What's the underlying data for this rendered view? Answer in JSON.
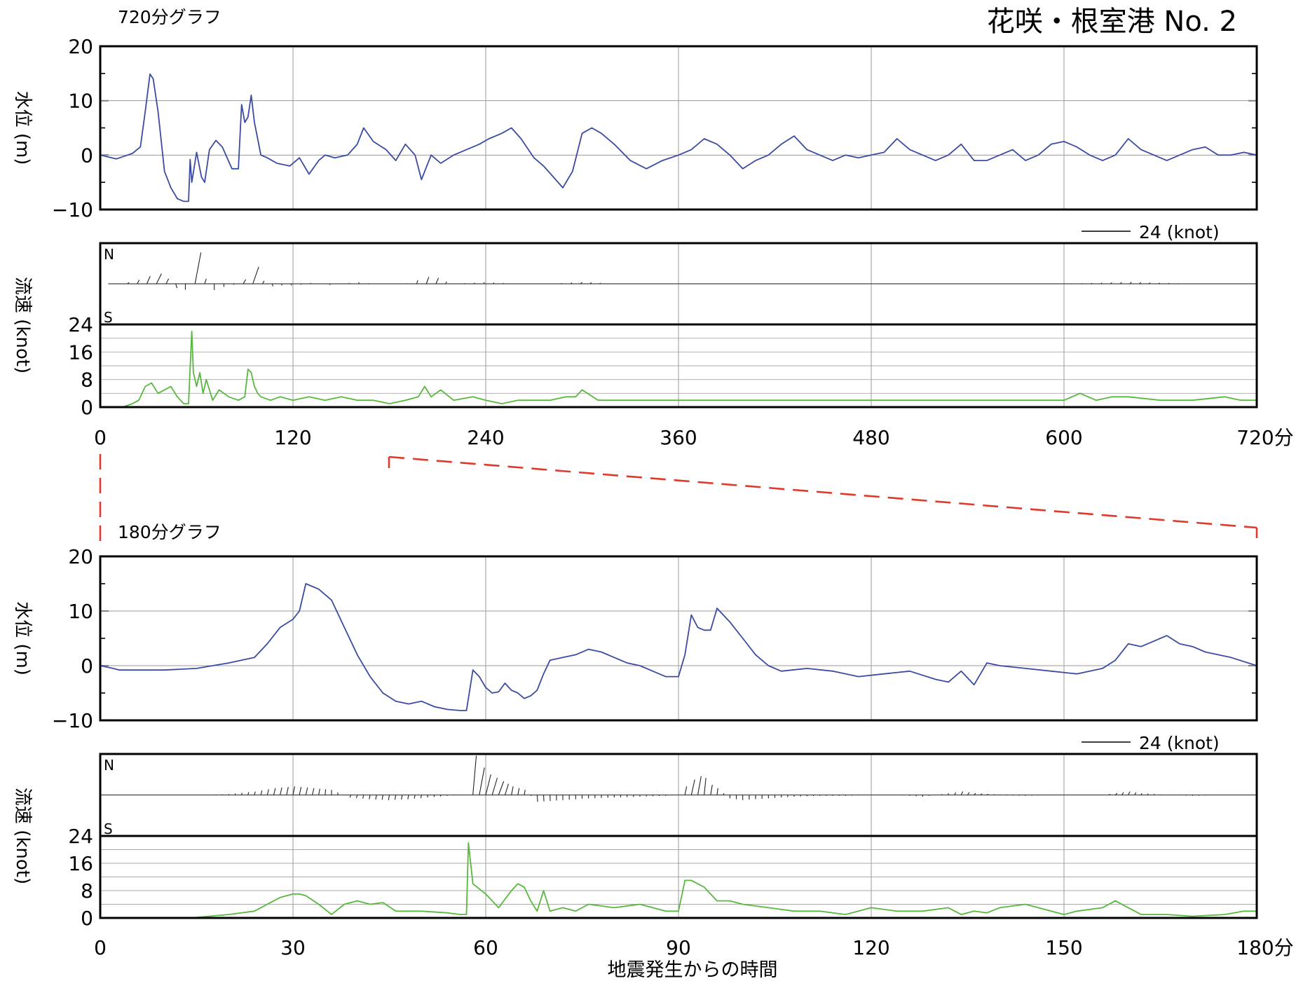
{
  "header": {
    "station": "花咲・根室港 No. 2"
  },
  "common": {
    "xlabel": "地震発生からの時間",
    "x_unit": "分",
    "wl_ylabel": "水位 (m)",
    "sp_ylabel": "流速 (knot)",
    "north_label": "N",
    "south_label": "S",
    "scale_label": "24 (knot)"
  },
  "chart_data": [
    {
      "type": "line",
      "subtitle": "720分グラフ",
      "xlim": [
        0,
        720
      ],
      "x_ticks": [
        0,
        120,
        240,
        360,
        480,
        600,
        720
      ],
      "x_tick_labels": [
        "0",
        "120",
        "240",
        "360",
        "480",
        "600",
        "720分"
      ],
      "water_level": {
        "ylabel": "水位 (m)",
        "ylim": [
          -10,
          20
        ],
        "y_ticks": [
          -10,
          0,
          10,
          20
        ],
        "y_tick_labels": [
          "−10",
          "0",
          "10",
          "20"
        ],
        "color": "#3b4aa3",
        "x": [
          0,
          10,
          20,
          25,
          28,
          31,
          33,
          36,
          40,
          44,
          48,
          52,
          55,
          56,
          57,
          60,
          63,
          65,
          68,
          72,
          76,
          82,
          86,
          88,
          90,
          92,
          94,
          96,
          100,
          104,
          110,
          118,
          124,
          130,
          136,
          140,
          146,
          154,
          160,
          164,
          170,
          178,
          184,
          190,
          196,
          200,
          206,
          212,
          220,
          228,
          236,
          242,
          250,
          256,
          262,
          270,
          276,
          282,
          288,
          294,
          300,
          306,
          312,
          320,
          330,
          340,
          350,
          360,
          368,
          376,
          384,
          392,
          400,
          408,
          416,
          424,
          432,
          440,
          448,
          456,
          464,
          472,
          480,
          488,
          496,
          504,
          512,
          520,
          528,
          536,
          544,
          552,
          560,
          568,
          576,
          584,
          592,
          600,
          608,
          616,
          624,
          632,
          640,
          648,
          656,
          664,
          672,
          680,
          688,
          696,
          704,
          712,
          720
        ],
        "y": [
          0,
          -0.7,
          0.3,
          1.5,
          8,
          14.9,
          14,
          8,
          -3,
          -6,
          -8,
          -8.5,
          -8.5,
          -0.8,
          -5,
          0.5,
          -4,
          -5,
          1,
          2.7,
          1.5,
          -2.5,
          -2.5,
          9.3,
          6,
          7,
          11,
          6,
          0,
          -0.5,
          -1.5,
          -2,
          -0.5,
          -3.5,
          -1,
          0,
          -0.5,
          0,
          2,
          5,
          2.5,
          1,
          -1,
          2,
          0,
          -4.5,
          0,
          -1.5,
          0,
          1,
          2,
          3,
          4,
          5,
          3,
          -0.5,
          -2,
          -4,
          -6,
          -3,
          4,
          5,
          4,
          2,
          -1,
          -2.5,
          -1,
          0,
          1,
          3,
          2,
          0,
          -2.5,
          -1,
          0,
          2,
          3.5,
          1,
          0,
          -1,
          0,
          -0.5,
          0,
          0.5,
          3,
          1,
          0,
          -1,
          0,
          2,
          -1,
          -1,
          0,
          1,
          -1,
          0,
          2,
          2.5,
          1.5,
          0,
          -1,
          0,
          3,
          1,
          0,
          -1,
          0,
          1,
          1.5,
          0,
          0,
          0.5,
          0
        ]
      },
      "current": {
        "n_limit": 24,
        "color": "#222222",
        "step": 6,
        "t": [
          5,
          12,
          18,
          22,
          26,
          30,
          34,
          38,
          42,
          46,
          50,
          56,
          58,
          60,
          62,
          64,
          66,
          70,
          76,
          82,
          86,
          92,
          94,
          96,
          100,
          104,
          110,
          116,
          122,
          128,
          134,
          140,
          150,
          160,
          170,
          180,
          190,
          200,
          206,
          212,
          220,
          240,
          260,
          280,
          300,
          320,
          340,
          360,
          390,
          420,
          450,
          480,
          510,
          540,
          560,
          600,
          640,
          680,
          700,
          720
        ],
        "u": [
          0,
          0,
          1,
          1,
          2,
          2,
          3,
          3,
          1,
          1,
          0,
          0,
          3,
          4,
          3,
          1,
          1,
          0,
          0,
          0,
          1,
          2,
          4,
          3,
          1,
          1,
          0,
          0,
          0,
          0,
          0,
          0,
          0,
          0,
          0,
          0,
          0,
          1,
          2,
          1,
          0,
          0,
          0,
          0,
          1,
          0,
          0,
          0,
          0,
          0,
          0,
          0,
          0,
          0,
          0,
          0,
          1,
          0,
          0,
          0
        ],
        "v": [
          0,
          0,
          1,
          2,
          3,
          5,
          6,
          6,
          2,
          -2,
          -4,
          -3,
          23,
          14,
          8,
          4,
          2,
          -4,
          -2,
          -1,
          1,
          4,
          9,
          11,
          3,
          -2,
          -1,
          -1,
          -1,
          0,
          1,
          -1,
          0,
          1,
          0,
          0,
          0,
          3,
          5,
          2,
          0,
          1,
          0,
          0,
          1,
          0,
          0,
          0,
          0,
          0,
          0,
          0,
          0,
          0,
          0,
          0,
          1,
          0,
          0,
          0
        ]
      },
      "speed": {
        "ylabel": "流速 (knot)",
        "ylim": [
          0,
          24
        ],
        "y_ticks": [
          0,
          8,
          16,
          24
        ],
        "y_tick_labels": [
          "0",
          "8",
          "16",
          "24"
        ],
        "color": "#58b83e",
        "x": [
          0,
          14,
          20,
          24,
          28,
          32,
          36,
          40,
          44,
          48,
          52,
          55,
          57,
          58,
          60,
          62,
          64,
          66,
          70,
          74,
          80,
          86,
          90,
          92,
          94,
          96,
          98,
          100,
          106,
          112,
          120,
          130,
          140,
          150,
          160,
          170,
          180,
          190,
          198,
          202,
          206,
          212,
          220,
          232,
          240,
          250,
          260,
          270,
          280,
          290,
          296,
          300,
          310,
          320,
          340,
          360,
          380,
          400,
          420,
          440,
          460,
          480,
          500,
          520,
          540,
          560,
          580,
          600,
          610,
          620,
          630,
          640,
          660,
          680,
          700,
          710,
          720
        ],
        "y": [
          0,
          0,
          1,
          2,
          6,
          7,
          4,
          5,
          6,
          3,
          1,
          1,
          22,
          10,
          6,
          10,
          4,
          8,
          2,
          5,
          3,
          2,
          3,
          11,
          10,
          6,
          4,
          3,
          2,
          3,
          2,
          3,
          2,
          3,
          2,
          2,
          1,
          2,
          3,
          6,
          3,
          5,
          2,
          3,
          2,
          1,
          2,
          2,
          2,
          3,
          3,
          5,
          2,
          2,
          2,
          2,
          2,
          2,
          2,
          2,
          2,
          2,
          2,
          2,
          2,
          2,
          2,
          2,
          4,
          2,
          3,
          3,
          2,
          2,
          3,
          2,
          2
        ]
      }
    },
    {
      "type": "line",
      "subtitle": "180分グラフ",
      "xlim": [
        0,
        180
      ],
      "x_ticks": [
        0,
        30,
        60,
        90,
        120,
        150,
        180
      ],
      "x_tick_labels": [
        "0",
        "30",
        "60",
        "90",
        "120",
        "150",
        "180分"
      ],
      "water_level": {
        "ylabel": "水位 (m)",
        "ylim": [
          -10,
          20
        ],
        "y_ticks": [
          -10,
          0,
          10,
          20
        ],
        "y_tick_labels": [
          "−10",
          "0",
          "10",
          "20"
        ],
        "color": "#3b4aa3",
        "x": [
          0,
          2,
          3,
          10,
          15,
          20,
          24,
          26,
          28,
          30,
          31,
          32,
          34,
          36,
          38,
          40,
          42,
          44,
          46,
          48,
          50,
          52,
          54,
          56,
          57,
          58,
          59,
          60,
          61,
          62,
          63,
          64,
          65,
          66,
          67,
          68,
          69,
          70,
          72,
          74,
          76,
          78,
          80,
          82,
          84,
          86,
          88,
          90,
          91,
          92,
          93,
          94,
          95,
          96,
          98,
          100,
          102,
          104,
          106,
          110,
          114,
          118,
          122,
          126,
          130,
          132,
          134,
          136,
          138,
          140,
          144,
          148,
          152,
          156,
          158,
          160,
          162,
          164,
          166,
          168,
          170,
          172,
          176,
          180
        ],
        "y": [
          0,
          -0.5,
          -0.8,
          -0.8,
          -0.5,
          0.5,
          1.5,
          4,
          7,
          8.5,
          10,
          15,
          14,
          12,
          7,
          2,
          -2,
          -5,
          -6.5,
          -7,
          -6.5,
          -7.5,
          -8,
          -8.2,
          -8.2,
          -0.8,
          -2,
          -4,
          -5,
          -4.8,
          -3.2,
          -4.5,
          -5,
          -6,
          -5.5,
          -4.5,
          -1.5,
          1,
          1.5,
          2,
          3,
          2.5,
          1.5,
          0.5,
          0,
          -1,
          -2,
          -2,
          2,
          9.3,
          7,
          6.5,
          6.5,
          10.5,
          8,
          5,
          2,
          0,
          -1,
          -0.5,
          -1,
          -2,
          -1.5,
          -1,
          -2.5,
          -3,
          -1,
          -3.5,
          0.5,
          0,
          -0.5,
          -1,
          -1.5,
          -0.5,
          1,
          4,
          3.5,
          4.5,
          5.5,
          4,
          3.5,
          2.5,
          1.5,
          0
        ]
      },
      "current": {
        "n_limit": 24,
        "color": "#222222",
        "step": 1,
        "t": [
          0,
          10,
          15,
          20,
          24,
          27,
          30,
          33,
          36,
          39,
          42,
          45,
          48,
          51,
          54,
          56,
          57,
          58,
          59,
          60,
          62,
          64,
          66,
          68,
          72,
          76,
          80,
          84,
          88,
          90,
          91,
          92,
          93,
          94,
          95,
          96,
          98,
          100,
          104,
          108,
          112,
          116,
          120,
          124,
          128,
          132,
          134,
          136,
          140,
          144,
          148,
          152,
          156,
          158,
          160,
          162,
          166,
          170,
          175,
          180
        ],
        "u": [
          0,
          0,
          0,
          0,
          0.5,
          1,
          1,
          1,
          0,
          -0.5,
          -0.5,
          -0.5,
          -0.5,
          -0.3,
          0,
          0,
          0,
          2,
          3,
          3,
          3,
          1,
          0.5,
          0.3,
          0,
          0,
          0,
          0,
          0,
          0,
          1,
          2,
          2,
          1,
          1,
          0.5,
          0,
          0,
          0,
          0,
          0,
          0,
          0,
          0,
          0,
          0,
          1,
          1,
          0.5,
          0,
          0,
          0,
          0,
          1,
          1,
          0.5,
          0,
          0,
          0,
          0
        ],
        "v": [
          0,
          0,
          0,
          0.5,
          2,
          4,
          5,
          4,
          3,
          -1.5,
          -2.5,
          -3,
          -2.5,
          -1.5,
          -0.5,
          0,
          0,
          23,
          16,
          12,
          8,
          5,
          3,
          -4,
          -3,
          -2,
          -1.5,
          -1,
          -0.5,
          0,
          5,
          9,
          11,
          10,
          6,
          4,
          -2,
          -3,
          -2,
          -1,
          -0.5,
          -0.5,
          0,
          0,
          -1,
          1,
          2,
          1,
          0,
          -0.5,
          0,
          0,
          0,
          1,
          2,
          1,
          0,
          -0.5,
          0,
          0
        ]
      },
      "speed": {
        "ylabel": "流速 (knot)",
        "ylim": [
          0,
          24
        ],
        "y_ticks": [
          0,
          8,
          16,
          24
        ],
        "y_tick_labels": [
          "0",
          "8",
          "16",
          "24"
        ],
        "color": "#58b83e",
        "x": [
          0,
          14,
          20,
          24,
          26,
          28,
          30,
          31,
          32,
          34,
          36,
          38,
          40,
          42,
          44,
          46,
          48,
          50,
          54,
          56,
          57,
          57.3,
          58,
          60,
          62,
          64,
          65,
          66,
          67,
          68,
          69,
          70,
          72,
          74,
          76,
          80,
          84,
          88,
          90,
          91,
          92,
          94,
          95,
          96,
          98,
          100,
          104,
          108,
          112,
          116,
          120,
          124,
          128,
          132,
          134,
          136,
          138,
          140,
          144,
          146,
          150,
          152,
          156,
          158,
          160,
          162,
          166,
          170,
          175,
          178,
          180
        ],
        "y": [
          0,
          0,
          1,
          2,
          4,
          6,
          7,
          7,
          6.5,
          4,
          1,
          4,
          5,
          4,
          4.5,
          2,
          2,
          2,
          1.5,
          1,
          1,
          22,
          10,
          7,
          3,
          8,
          10,
          9,
          5,
          2,
          8,
          2,
          3,
          2,
          4,
          3,
          4,
          2,
          2,
          11,
          11,
          9,
          7,
          5,
          5,
          4,
          3,
          2,
          2,
          1,
          3,
          2,
          2,
          3,
          1,
          2,
          1.5,
          3,
          4,
          3,
          1,
          2,
          3,
          5,
          3,
          1,
          1,
          0.5,
          1,
          2,
          2
        ]
      }
    }
  ]
}
